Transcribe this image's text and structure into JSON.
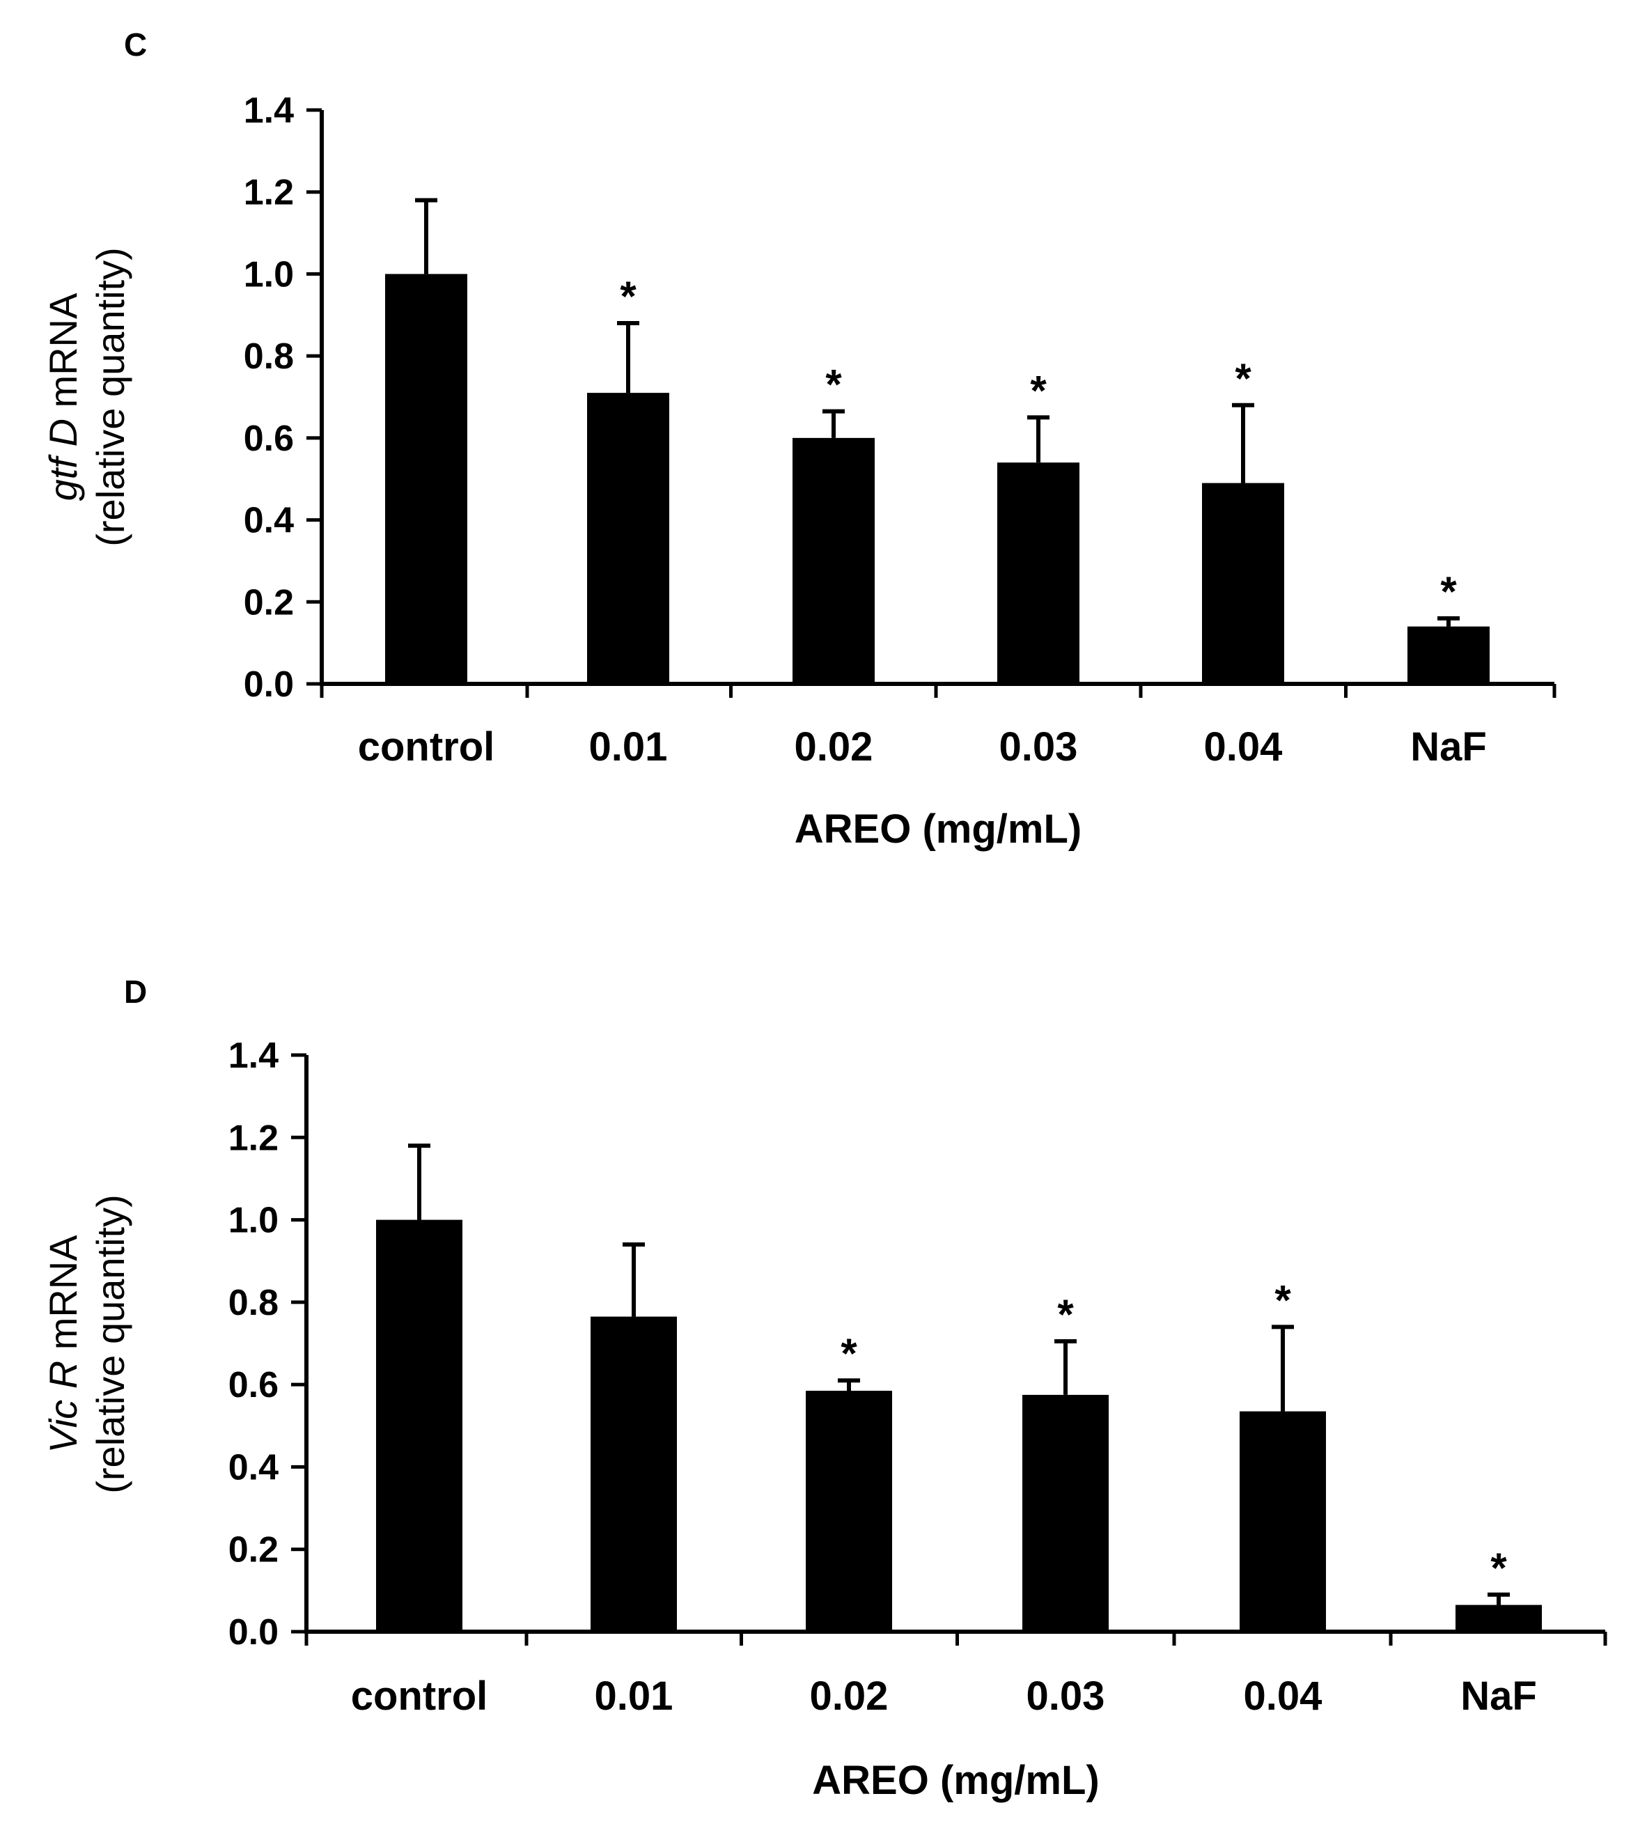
{
  "chart_data": [
    {
      "type": "bar",
      "panel": "C",
      "categories": [
        "control",
        "0.01",
        "0.02",
        "0.03",
        "0.04",
        "NaF"
      ],
      "values": [
        1.0,
        0.71,
        0.6,
        0.54,
        0.49,
        0.14
      ],
      "errors": [
        0.18,
        0.17,
        0.065,
        0.11,
        0.19,
        0.02
      ],
      "significant": [
        false,
        true,
        true,
        true,
        true,
        true
      ],
      "significance_marker": "*",
      "ylim": [
        0,
        1.4
      ],
      "yticks": [
        "0.0",
        "0.2",
        "0.4",
        "0.6",
        "0.8",
        "1.0",
        "1.2",
        "1.4"
      ],
      "xlabel": "AREO (mg/mL)",
      "ylabel_gene": "gtf D",
      "ylabel_suffix": "mRNA",
      "ylabel_line2": "(relative quantity)",
      "bar_color": "#000000"
    },
    {
      "type": "bar",
      "panel": "D",
      "categories": [
        "control",
        "0.01",
        "0.02",
        "0.03",
        "0.04",
        "NaF"
      ],
      "values": [
        1.0,
        0.765,
        0.585,
        0.575,
        0.535,
        0.065
      ],
      "errors": [
        0.18,
        0.175,
        0.025,
        0.13,
        0.205,
        0.025
      ],
      "significant": [
        false,
        false,
        true,
        true,
        true,
        true
      ],
      "significance_marker": "*",
      "ylim": [
        0,
        1.4
      ],
      "yticks": [
        "0.0",
        "0.2",
        "0.4",
        "0.6",
        "0.8",
        "1.0",
        "1.2",
        "1.4"
      ],
      "xlabel": "AREO (mg/mL)",
      "ylabel_gene": "Vic R",
      "ylabel_suffix": "mRNA",
      "ylabel_line2": "(relative quantity)",
      "bar_color": "#000000"
    }
  ]
}
